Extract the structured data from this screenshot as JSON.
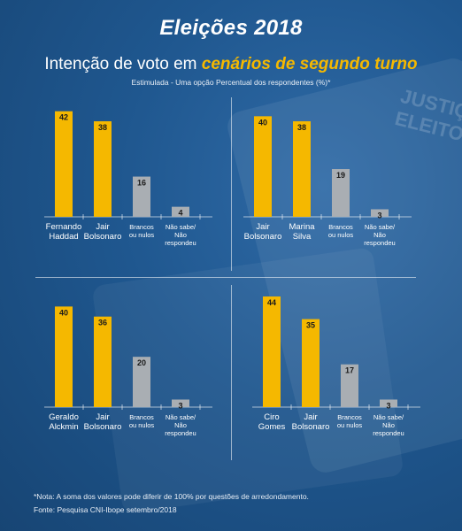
{
  "title": "Eleições 2018",
  "subtitle": {
    "prefix": "Intenção de voto em ",
    "highlight": "cenários de segundo turno"
  },
  "subnote": "Estimulada - Uma opção Percentual dos respondentes (%)*",
  "background_text": "JUSTIÇA ELEITORAL",
  "colors": {
    "candidate": "#f5b800",
    "other": "#a9aeb3",
    "background": "#1c4f86",
    "highlight_text": "#f5b800"
  },
  "chart_data": [
    {
      "type": "bar",
      "categories": [
        [
          "Fernando",
          "Haddad"
        ],
        [
          "Jair",
          "Bolsonaro"
        ],
        [
          "Brancos",
          "ou nulos"
        ],
        [
          "Não sabe/",
          "Não",
          "respondeu"
        ]
      ],
      "values": [
        42,
        38,
        16,
        4
      ],
      "kinds": [
        "candidate",
        "candidate",
        "other",
        "other"
      ],
      "ylim": [
        0,
        44
      ]
    },
    {
      "type": "bar",
      "categories": [
        [
          "Jair",
          "Bolsonaro"
        ],
        [
          "Marina",
          "Silva"
        ],
        [
          "Brancos",
          "ou nulos"
        ],
        [
          "Não sabe/",
          "Não",
          "respondeu"
        ]
      ],
      "values": [
        40,
        38,
        19,
        3
      ],
      "kinds": [
        "candidate",
        "candidate",
        "other",
        "other"
      ],
      "ylim": [
        0,
        44
      ]
    },
    {
      "type": "bar",
      "categories": [
        [
          "Geraldo",
          "Alckmin"
        ],
        [
          "Jair",
          "Bolsonaro"
        ],
        [
          "Brancos",
          "ou nulos"
        ],
        [
          "Não sabe/",
          "Não",
          "respondeu"
        ]
      ],
      "values": [
        40,
        36,
        20,
        3
      ],
      "kinds": [
        "candidate",
        "candidate",
        "other",
        "other"
      ],
      "ylim": [
        0,
        44
      ]
    },
    {
      "type": "bar",
      "categories": [
        [
          "Ciro",
          "Gomes"
        ],
        [
          "Jair",
          "Bolsonaro"
        ],
        [
          "Brancos",
          "ou nulos"
        ],
        [
          "Não sabe/",
          "Não",
          "respondeu"
        ]
      ],
      "values": [
        44,
        35,
        17,
        3
      ],
      "kinds": [
        "candidate",
        "candidate",
        "other",
        "other"
      ],
      "ylim": [
        0,
        44
      ]
    }
  ],
  "footnotes": {
    "note": "*Nota: A soma dos valores pode diferir de 100% por questões de arredondamento.",
    "source": "Fonte: Pesquisa CNI-Ibope setembro/2018"
  }
}
